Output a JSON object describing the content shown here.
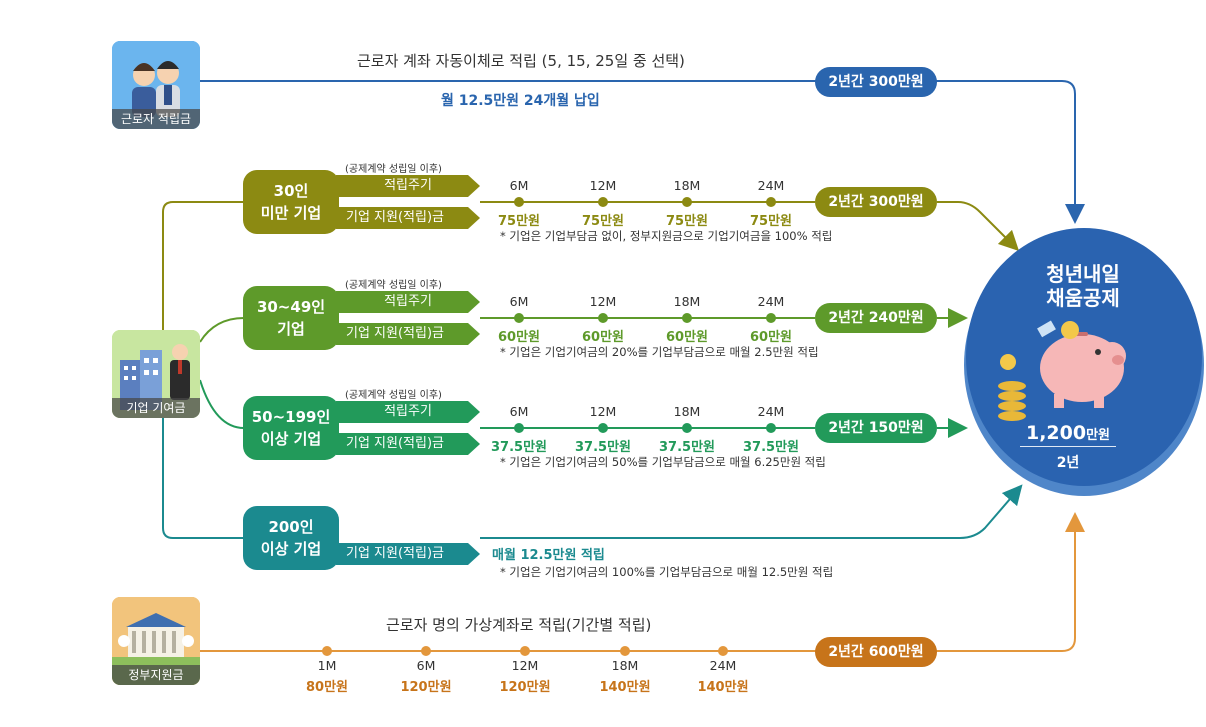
{
  "worker": {
    "icon_caption": "근로자 적립금",
    "title": "근로자 계좌 자동이체로 적립 (5, 15, 25일 중 선택)",
    "subtitle": "월 12.5만원 24개월 납입",
    "total": "2년간 300만원"
  },
  "company": {
    "icon_caption": "기업 기여금",
    "period_note": "(공제계약 성립일 이후)",
    "cycle_label": "적립주기",
    "support_label": "기업 지원(적립)금",
    "tiers": [
      {
        "name": "30인\n미만 기업",
        "months": [
          "6M",
          "12M",
          "18M",
          "24M"
        ],
        "values": [
          "75만원",
          "75만원",
          "75만원",
          "75만원"
        ],
        "total": "2년간 300만원",
        "note": "* 기업은 기업부담금 없이, 정부지원금으로 기업기여금을 100% 적립"
      },
      {
        "name": "30~49인\n기업",
        "months": [
          "6M",
          "12M",
          "18M",
          "24M"
        ],
        "values": [
          "60만원",
          "60만원",
          "60만원",
          "60만원"
        ],
        "total": "2년간 240만원",
        "note": "* 기업은 기업기여금의 20%를 기업부담금으로 매월 2.5만원 적립"
      },
      {
        "name": "50~199인\n이상 기업",
        "months": [
          "6M",
          "12M",
          "18M",
          "24M"
        ],
        "values": [
          "37.5만원",
          "37.5만원",
          "37.5만원",
          "37.5만원"
        ],
        "total": "2년간 150만원",
        "note": "* 기업은 기업기여금의 50%를 기업부담금으로 매월 6.25만원 적립"
      },
      {
        "name": "200인\n이상 기업",
        "monthly": "매월 12.5만원 적립",
        "note": "* 기업은 기업기여금의 100%를 기업부담금으로 매월 12.5만원 적립"
      }
    ]
  },
  "government": {
    "icon_caption": "정부지원금",
    "title": "근로자 명의 가상계좌로 적립(기간별 적립)",
    "months": [
      "1M",
      "6M",
      "12M",
      "18M",
      "24M"
    ],
    "values": [
      "80만원",
      "120만원",
      "120만원",
      "140만원",
      "140만원"
    ],
    "total": "2년간 600만원"
  },
  "product": {
    "name_line1": "청년내일",
    "name_line2": "채움공제",
    "amount": "1,200",
    "amount_unit": "만원",
    "period": "2년"
  },
  "colors": {
    "worker": "#2a65ae",
    "tier1": "#8c8a12",
    "tier2": "#5e9a2a",
    "tier3": "#229a5a",
    "tier4": "#1b8a8f",
    "government": "#e3973c",
    "gov_pill": "#c7741a"
  }
}
